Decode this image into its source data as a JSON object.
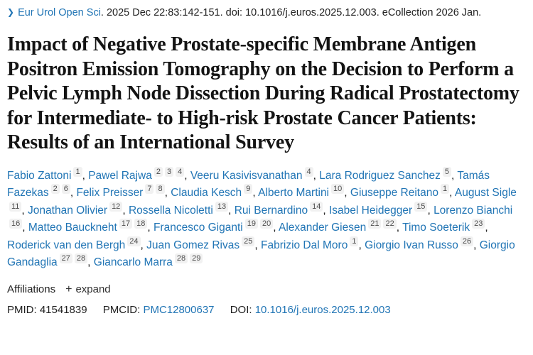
{
  "citation": {
    "journal": "Eur Urol Open Sci",
    "rest": ". 2025 Dec 22:83:142-151. doi: 10.1016/j.euros.2025.12.003. eCollection 2026 Jan."
  },
  "title": "Impact of Negative Prostate-specific Membrane Antigen Positron Emission Tomography on the Decision to Perform a Pelvic Lymph Node Dissection During Radical Prostatectomy for Intermediate- to High-risk Prostate Cancer Patients: Results of an International Survey",
  "authors": [
    {
      "name": "Fabio Zattoni",
      "sup": [
        "1"
      ]
    },
    {
      "name": "Pawel Rajwa",
      "sup": [
        "2",
        "3",
        "4"
      ]
    },
    {
      "name": "Veeru Kasivisvanathan",
      "sup": [
        "4"
      ]
    },
    {
      "name": "Lara Rodriguez Sanchez",
      "sup": [
        "5"
      ]
    },
    {
      "name": "Tamás Fazekas",
      "sup": [
        "2",
        "6"
      ]
    },
    {
      "name": "Felix Preisser",
      "sup": [
        "7",
        "8"
      ]
    },
    {
      "name": "Claudia Kesch",
      "sup": [
        "9"
      ]
    },
    {
      "name": "Alberto Martini",
      "sup": [
        "10"
      ]
    },
    {
      "name": "Giuseppe Reitano",
      "sup": [
        "1"
      ]
    },
    {
      "name": "August Sigle",
      "sup": [
        "11"
      ]
    },
    {
      "name": "Jonathan Olivier",
      "sup": [
        "12"
      ]
    },
    {
      "name": "Rossella Nicoletti",
      "sup": [
        "13"
      ]
    },
    {
      "name": "Rui Bernardino",
      "sup": [
        "14"
      ]
    },
    {
      "name": "Isabel Heidegger",
      "sup": [
        "15"
      ]
    },
    {
      "name": "Lorenzo Bianchi",
      "sup": [
        "16"
      ]
    },
    {
      "name": "Matteo Bauckneht",
      "sup": [
        "17",
        "18"
      ]
    },
    {
      "name": "Francesco Giganti",
      "sup": [
        "19",
        "20"
      ]
    },
    {
      "name": "Alexander Giesen",
      "sup": [
        "21",
        "22"
      ]
    },
    {
      "name": "Timo Soeterik",
      "sup": [
        "23"
      ]
    },
    {
      "name": "Roderick van den Bergh",
      "sup": [
        "24"
      ]
    },
    {
      "name": "Juan Gomez Rivas",
      "sup": [
        "25"
      ]
    },
    {
      "name": "Fabrizio Dal Moro",
      "sup": [
        "1"
      ]
    },
    {
      "name": "Giorgio Ivan Russo",
      "sup": [
        "26"
      ]
    },
    {
      "name": "Giorgio Gandaglia",
      "sup": [
        "27",
        "28"
      ]
    },
    {
      "name": "Giancarlo Marra",
      "sup": [
        "28",
        "29"
      ]
    }
  ],
  "affiliations": {
    "label": "Affiliations",
    "expand_label": "expand",
    "plus_glyph": "+"
  },
  "ids": {
    "pmid_label": "PMID:",
    "pmid_value": "41541839",
    "pmcid_label": "PMCID:",
    "pmcid_value": "PMC12800637",
    "doi_label": "DOI:",
    "doi_value": "10.1016/j.euros.2025.12.003"
  },
  "colors": {
    "link_blue": "#2175b5",
    "text_dark": "#212121",
    "chip_bg": "#f1f1f1"
  }
}
